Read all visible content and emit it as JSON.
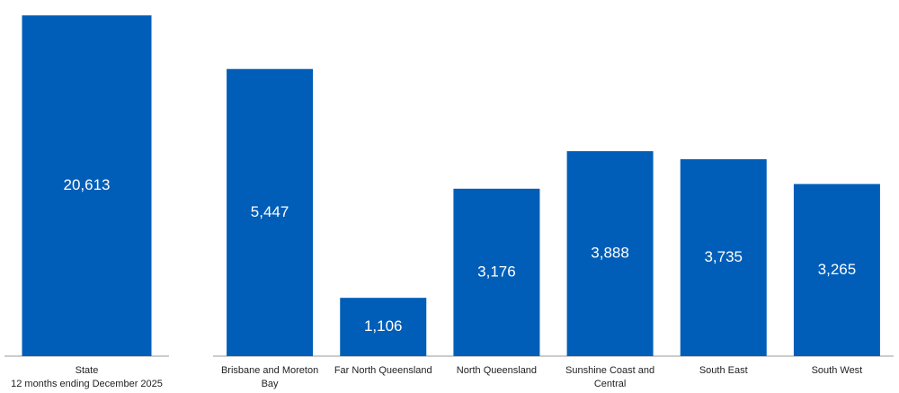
{
  "chart_data": [
    {
      "type": "bar",
      "categories": [
        "State"
      ],
      "subtitle": "12 months ending December 2025",
      "values": [
        20613
      ],
      "value_labels": [
        "20,613"
      ],
      "color": "#005eb8",
      "ylim": [
        0,
        21000
      ]
    },
    {
      "type": "bar",
      "categories": [
        "Brisbane and Moreton Bay",
        "Far North Queensland",
        "North Queensland",
        "Sunshine Coast and Central",
        "South East",
        "South West"
      ],
      "values": [
        5447,
        1106,
        3176,
        3888,
        3735,
        3265
      ],
      "value_labels": [
        "5,447",
        "1,106",
        "3,176",
        "3,888",
        "3,735",
        "3,265"
      ],
      "color": "#005eb8",
      "ylim": [
        0,
        6500
      ]
    }
  ]
}
